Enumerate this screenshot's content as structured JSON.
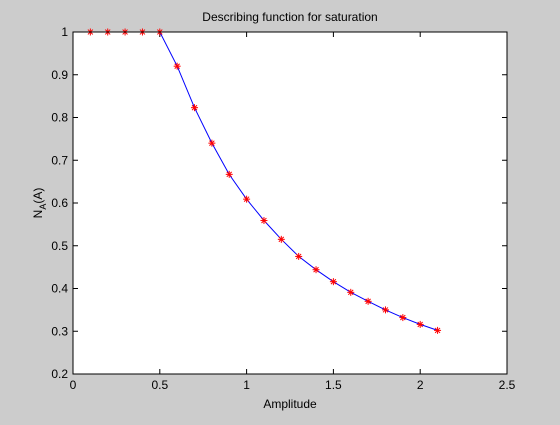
{
  "chart_data": {
    "type": "line",
    "title": "Describing function for saturation",
    "xlabel": "Amplitude",
    "ylabel": "N",
    "ylabel_subscript": "A",
    "ylabel_suffix": "(A)",
    "xlim": [
      0,
      2.5
    ],
    "ylim": [
      0.2,
      1
    ],
    "xticks": [
      0,
      0.5,
      1,
      1.5,
      2,
      2.5
    ],
    "xtick_labels": [
      "0",
      "0.5",
      "1",
      "1.5",
      "2",
      "2.5"
    ],
    "yticks": [
      0.2,
      0.3,
      0.4,
      0.5,
      0.6,
      0.7,
      0.8,
      0.9,
      1
    ],
    "ytick_labels": [
      "0.2",
      "0.3",
      "0.4",
      "0.5",
      "0.6",
      "0.7",
      "0.8",
      "0.9",
      "1"
    ],
    "grid": false,
    "series": [
      {
        "line_color": "#0000ff",
        "marker_color": "#ff0000",
        "marker": "*",
        "x": [
          0.1,
          0.2,
          0.3,
          0.4,
          0.5,
          0.6,
          0.7,
          0.8,
          0.9,
          1.0,
          1.1,
          1.2,
          1.3,
          1.4,
          1.5,
          1.6,
          1.7,
          1.8,
          1.9,
          2.0,
          2.1
        ],
        "y": [
          1,
          1,
          1,
          1,
          1,
          0.92,
          0.823,
          0.74,
          0.667,
          0.609,
          0.559,
          0.515,
          0.475,
          0.444,
          0.416,
          0.391,
          0.37,
          0.35,
          0.332,
          0.316,
          0.302
        ]
      }
    ]
  }
}
